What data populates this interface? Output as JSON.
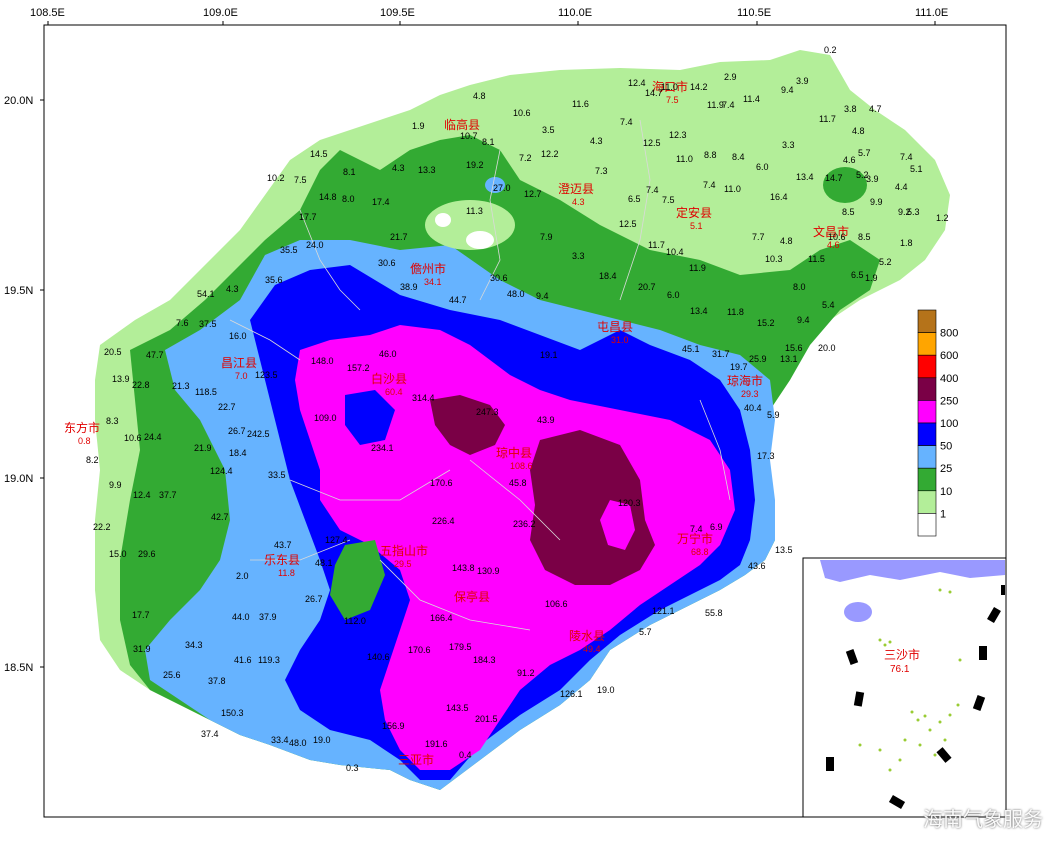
{
  "axes": {
    "longitude_ticks": [
      "108.5E",
      "109.0E",
      "109.5E",
      "110.0E",
      "110.5E",
      "111.0E"
    ],
    "latitude_ticks": [
      "20.0N",
      "19.5N",
      "19.0N",
      "18.5N"
    ]
  },
  "legend": {
    "levels": [
      {
        "label": "800",
        "color": "#b5731a"
      },
      {
        "label": "600",
        "color": "#ffa500"
      },
      {
        "label": "400",
        "color": "#ff0000"
      },
      {
        "label": "250",
        "color": "#7a0046"
      },
      {
        "label": "100",
        "color": "#ff00ff"
      },
      {
        "label": "50",
        "color": "#0000ff"
      },
      {
        "label": "25",
        "color": "#66b3ff"
      },
      {
        "label": "10",
        "color": "#33aa33"
      },
      {
        "label": "1",
        "color": "#b3ee99"
      },
      {
        "label": "",
        "color": "#ffffff"
      }
    ]
  },
  "cities": [
    {
      "name": "海口市",
      "value": "7.5"
    },
    {
      "name": "临高县",
      "value": ""
    },
    {
      "name": "澄迈县",
      "value": "4.3"
    },
    {
      "name": "定安县",
      "value": "5.1"
    },
    {
      "name": "文昌市",
      "value": "4.6"
    },
    {
      "name": "儋州市",
      "value": "34.1"
    },
    {
      "name": "屯昌县",
      "value": "31.0"
    },
    {
      "name": "昌江县",
      "value": "7.0"
    },
    {
      "name": "白沙县",
      "value": "60.4"
    },
    {
      "name": "琼海市",
      "value": "29.3"
    },
    {
      "name": "东方市",
      "value": "0.8"
    },
    {
      "name": "琼中县",
      "value": "108.6"
    },
    {
      "name": "万宁市",
      "value": "68.8"
    },
    {
      "name": "乐东县",
      "value": "11.8"
    },
    {
      "name": "五指山市",
      "value": "29.5"
    },
    {
      "name": "保亭县",
      "value": ""
    },
    {
      "name": "陵水县",
      "value": "49.4"
    },
    {
      "name": "三亚市",
      "value": ""
    }
  ],
  "station_values": [
    "0.2",
    "2.9",
    "3.9",
    "14.2",
    "12.4",
    "14.7",
    "11.0",
    "11.9",
    "7.4",
    "11.4",
    "9.4",
    "4.8",
    "11.6",
    "10.6",
    "10.7",
    "1.9",
    "3.5",
    "4.3",
    "7.4",
    "12.5",
    "12.3",
    "11.0",
    "8.8",
    "8.4",
    "6.0",
    "3.3",
    "11.7",
    "3.8",
    "4.7",
    "4.8",
    "5.2",
    "8.1",
    "7.2",
    "12.2",
    "7.3",
    "14.5",
    "8.1",
    "4.3",
    "13.3",
    "19.2",
    "27.0",
    "12.7",
    "6.5",
    "7.4",
    "7.5",
    "7.4",
    "11.0",
    "13.4",
    "14.7",
    "4.6",
    "5.7",
    "3.9",
    "7.4",
    "4.4",
    "5.1",
    "10.2",
    "7.5",
    "14.8",
    "8.0",
    "17.4",
    "11.3",
    "16.4",
    "9.9",
    "9.2",
    "5.3",
    "1.2",
    "17.7",
    "8.5",
    "24.0",
    "21.7",
    "7.9",
    "12.5",
    "3.3",
    "11.7",
    "10.4",
    "7.7",
    "4.8",
    "10.6",
    "8.5",
    "1.8",
    "35.5",
    "30.6",
    "30.6",
    "48.0",
    "9.4",
    "18.4",
    "11.9",
    "11.5",
    "5.2",
    "6.5",
    "1.9",
    "35.6",
    "38.9",
    "44.7",
    "20.7",
    "10.3",
    "8.0",
    "4.3",
    "54.1",
    "6.0",
    "5.4",
    "13.4",
    "11.8",
    "15.2",
    "9.4",
    "7.6",
    "37.5",
    "16.0",
    "19.1",
    "45.1",
    "31.7",
    "25.9",
    "15.6",
    "20.0",
    "20.5",
    "47.7",
    "123.5",
    "148.0",
    "157.2",
    "46.0",
    "19.7",
    "13.1",
    "13.9",
    "22.8",
    "21.3",
    "118.5",
    "109.0",
    "234.1",
    "43.9",
    "40.4",
    "5.9",
    "8.3",
    "10.6",
    "24.4",
    "22.7",
    "26.7",
    "242.5",
    "314.4",
    "247.3",
    "45.8",
    "17.3",
    "21.9",
    "18.4",
    "124.4",
    "170.6",
    "226.4",
    "236.2",
    "120.3",
    "7.4",
    "8.2",
    "9.9",
    "12.4",
    "37.7",
    "33.5",
    "43.7",
    "48.1",
    "127.4",
    "143.8",
    "130.9",
    "106.6",
    "121.1",
    "6.9",
    "22.2",
    "42.7",
    "26.7",
    "2.0",
    "112.0",
    "166.4",
    "170.6",
    "179.5",
    "184.3",
    "91.2",
    "5.7",
    "15.0",
    "29.6",
    "44.0",
    "37.9",
    "55.8",
    "43.6",
    "13.5",
    "17.7",
    "34.3",
    "41.6",
    "119.3",
    "140.6",
    "156.9",
    "143.5",
    "126.1",
    "19.0",
    "31.9",
    "25.6",
    "37.8",
    "150.3",
    "191.6",
    "201.5",
    "0.4",
    "37.4",
    "33.4",
    "48.0",
    "19.0",
    "0.3"
  ],
  "inset": {
    "city_name": "三沙市",
    "city_value": "76.1"
  },
  "watermark": "海南气象服务",
  "colors": {
    "frame": "#000000",
    "grid": "#cccccc"
  }
}
